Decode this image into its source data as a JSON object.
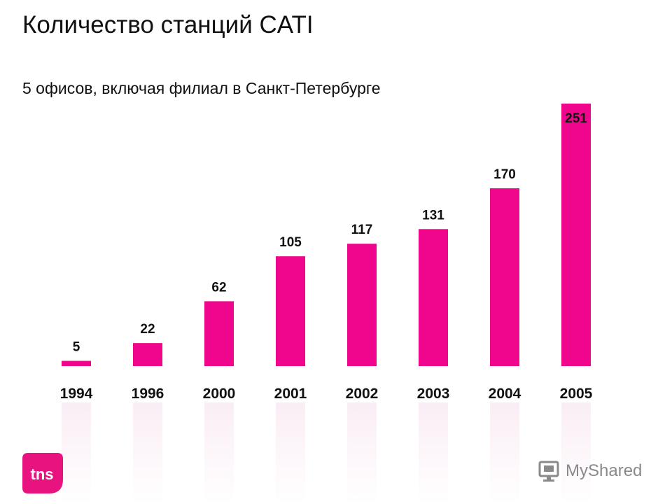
{
  "slide": {
    "title": "Количество станций CATI",
    "subtitle": "5 офисов, включая филиал в Санкт-Петербурге"
  },
  "colors": {
    "bar": "#f0068c",
    "text": "#111111",
    "brand": "#e8137f"
  },
  "chart_data": {
    "type": "bar",
    "categories": [
      "1994",
      "1996",
      "2000",
      "2001",
      "2002",
      "2003",
      "2004",
      "2005"
    ],
    "values": [
      5,
      22,
      62,
      105,
      117,
      131,
      170,
      251
    ],
    "data_labels": true,
    "ylim": [
      0,
      251
    ],
    "grid": false,
    "xlabel": "",
    "ylabel": ""
  },
  "logo": {
    "text": "tns",
    "icon": "tns-logo"
  },
  "watermark": {
    "text": "MyShared",
    "icon": "myshared-icon"
  }
}
